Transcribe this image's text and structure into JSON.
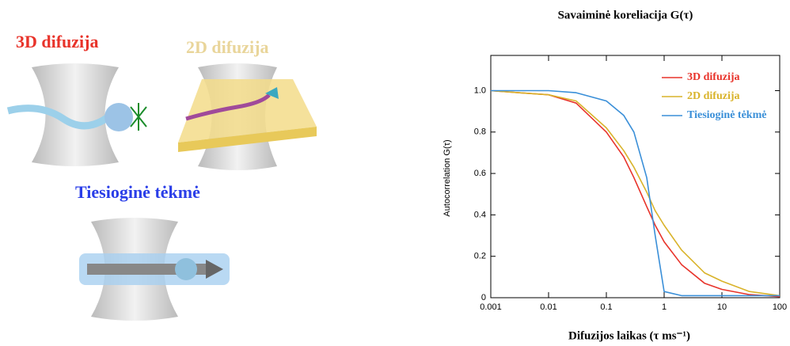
{
  "illustration": {
    "labels": [
      "3D difuzija",
      "2D difuzija",
      "Tiesioginė tėkmė"
    ]
  },
  "chart_data": {
    "type": "line",
    "title": "Savaiminė koreliacija G(τ)",
    "x_label": "Difuzijos laikas (τ ms⁻¹)",
    "y_label": "Autocorrelation G(τ)",
    "xscale": "log",
    "legend": "upper right",
    "x": [
      0.001,
      0.003,
      0.01,
      0.03,
      0.1,
      0.2,
      0.3,
      0.5,
      0.7,
      1,
      2,
      5,
      10,
      30,
      100
    ],
    "series": [
      {
        "name": "3D difuzija",
        "color": "#e8332a",
        "values": [
          1,
          0.99,
          0.98,
          0.94,
          0.8,
          0.68,
          0.58,
          0.44,
          0.35,
          0.27,
          0.16,
          0.07,
          0.04,
          0.015,
          0.005
        ]
      },
      {
        "name": "2D difuzija",
        "color": "#d9b32a",
        "values": [
          1,
          0.99,
          0.98,
          0.95,
          0.82,
          0.71,
          0.63,
          0.51,
          0.42,
          0.35,
          0.23,
          0.12,
          0.08,
          0.03,
          0.01
        ]
      },
      {
        "name": "Tiesioginė tėkmė",
        "color": "#3a8fd8",
        "values": [
          1,
          1,
          1,
          0.99,
          0.95,
          0.88,
          0.8,
          0.58,
          0.3,
          0.03,
          0.01,
          0.01,
          0.01,
          0.01,
          0.01
        ]
      }
    ],
    "xlim": [
      0.001,
      100
    ],
    "ylim": [
      0,
      1.17
    ],
    "xticks": [
      0.001,
      0.01,
      0.1,
      1,
      10,
      100
    ],
    "yticks": [
      0,
      0.2,
      0.4,
      0.6,
      0.8,
      {
        "value": 1,
        "label": "1.0"
      }
    ]
  }
}
